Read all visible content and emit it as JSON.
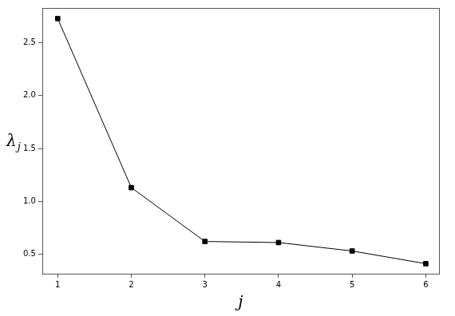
{
  "chart_data": {
    "type": "line",
    "x_label": "j",
    "y_label": "λj",
    "x": [
      1,
      2,
      3,
      4,
      5,
      6
    ],
    "values": [
      2.73,
      1.13,
      0.62,
      0.61,
      0.53,
      0.41
    ],
    "color": "#000000",
    "marker": "square",
    "line_style": "solid",
    "xlim": [
      0.79,
      6.18
    ],
    "xticks": [
      1,
      2,
      3,
      4,
      5,
      6
    ],
    "ylim": [
      0.315,
      2.83
    ],
    "yticks": [
      0.5,
      {
        "value": 1,
        "label": "1.0"
      },
      1.5,
      {
        "value": 2,
        "label": "2.0"
      },
      2.5
    ],
    "grid": false
  }
}
